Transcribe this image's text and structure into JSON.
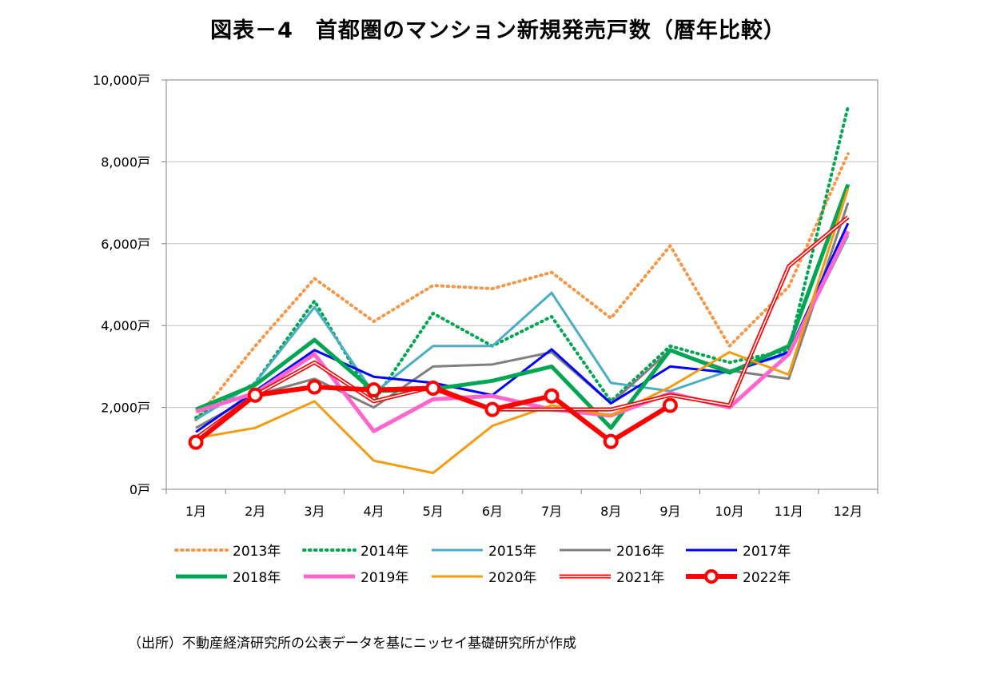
{
  "chart_data": {
    "type": "line",
    "title": "図表－4　首都圏のマンション新規発売戸数（暦年比較）",
    "xlabel": "",
    "ylabel": "",
    "ylim": [
      0,
      10000
    ],
    "yticks": [
      0,
      2000,
      4000,
      6000,
      8000,
      10000
    ],
    "ytick_labels": [
      "0戸",
      "2,000戸",
      "4,000戸",
      "6,000戸",
      "8,000戸",
      "10,000戸"
    ],
    "categories": [
      "1月",
      "2月",
      "3月",
      "4月",
      "5月",
      "6月",
      "7月",
      "8月",
      "9月",
      "10月",
      "11月",
      "12月"
    ],
    "grid": true,
    "legend_position": "bottom",
    "series": [
      {
        "name": "2013年",
        "color": "#f79646",
        "style": "dotted",
        "values": [
          1700,
          3500,
          5150,
          4100,
          4980,
          4900,
          5300,
          4180,
          5950,
          3500,
          4950,
          8200
        ]
      },
      {
        "name": "2014年",
        "color": "#00a651",
        "style": "dotted",
        "values": [
          1750,
          2600,
          4600,
          2150,
          4300,
          3500,
          4220,
          2150,
          3500,
          3100,
          3400,
          9350
        ]
      },
      {
        "name": "2015年",
        "color": "#4bacc6",
        "style": "solid",
        "values": [
          1700,
          2600,
          4450,
          2350,
          3500,
          3500,
          4800,
          2600,
          2400,
          2900,
          3300,
          6200
        ]
      },
      {
        "name": "2016年",
        "color": "#7f7f7f",
        "style": "solid",
        "values": [
          1500,
          2300,
          2700,
          2000,
          3000,
          3050,
          3350,
          2100,
          3400,
          2900,
          2700,
          7000
        ]
      },
      {
        "name": "2017年",
        "color": "#0000ff",
        "style": "solid",
        "values": [
          1400,
          2400,
          3400,
          2750,
          2600,
          2300,
          3420,
          2100,
          3000,
          2850,
          3350,
          6500
        ]
      },
      {
        "name": "2018年",
        "color": "#00a651",
        "style": "thick",
        "values": [
          1950,
          2550,
          3650,
          2400,
          2450,
          2650,
          3000,
          1500,
          3400,
          2850,
          3500,
          7450
        ]
      },
      {
        "name": "2019年",
        "color": "#ff66cc",
        "style": "thick",
        "values": [
          1900,
          2350,
          3300,
          1420,
          2200,
          2280,
          1950,
          1800,
          2350,
          2000,
          3300,
          6300
        ]
      },
      {
        "name": "2020年",
        "color": "#f39c12",
        "style": "solid",
        "values": [
          1250,
          1500,
          2150,
          700,
          400,
          1550,
          2050,
          1800,
          2500,
          3350,
          2800,
          7350
        ]
      },
      {
        "name": "2021年",
        "color": "#ff0000",
        "style": "double",
        "values": [
          1250,
          2300,
          3100,
          2150,
          2500,
          1950,
          1950,
          1950,
          2300,
          2050,
          5450,
          6650
        ]
      },
      {
        "name": "2022年",
        "color": "#ff0000",
        "style": "marker",
        "values": [
          1150,
          2300,
          2500,
          2430,
          2470,
          1950,
          2280,
          1170,
          2050,
          null,
          null,
          null
        ]
      }
    ]
  },
  "source_note": "（出所）不動産経済研究所の公表データを基にニッセイ基礎研究所が作成"
}
